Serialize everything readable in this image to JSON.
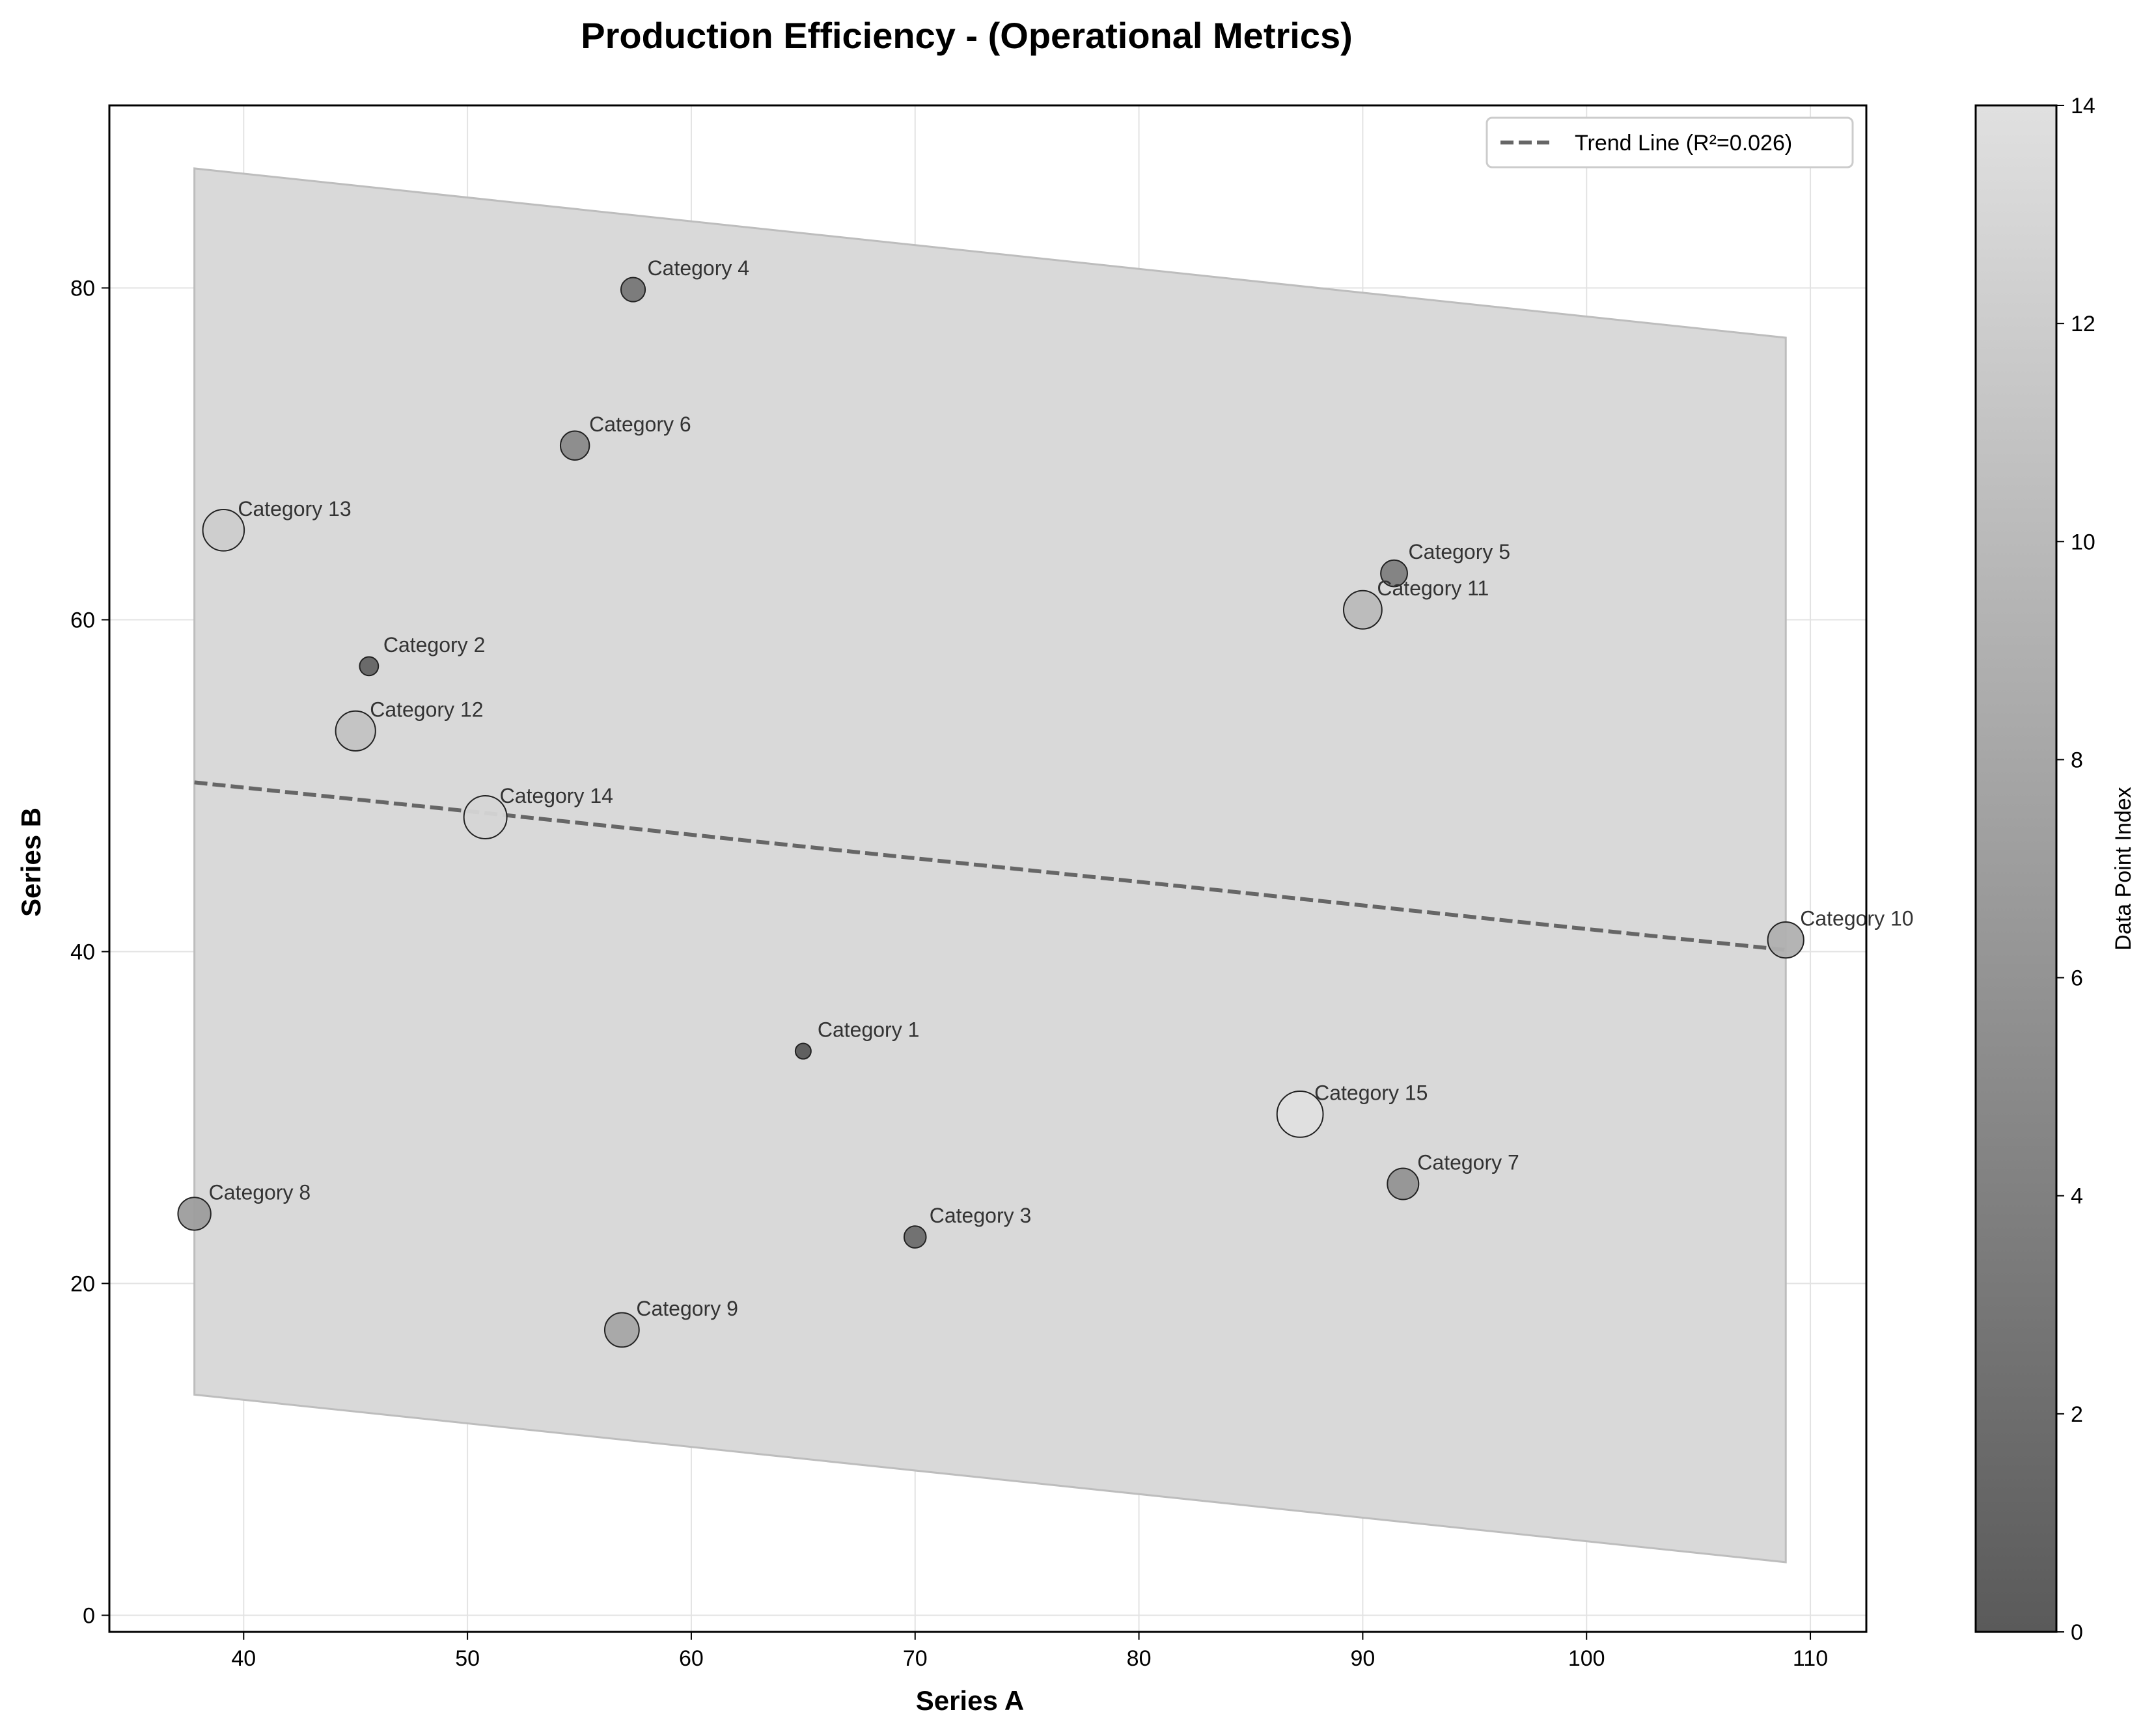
{
  "chart_data": {
    "type": "scatter",
    "title": "Production Efficiency - (Operational Metrics)",
    "xlabel": "Series A",
    "ylabel": "Series B",
    "xlim": [
      34,
      112.5
    ],
    "ylim": [
      -1,
      91
    ],
    "xticks": [
      40,
      50,
      60,
      70,
      80,
      90,
      100,
      110
    ],
    "yticks": [
      0,
      20,
      40,
      60,
      80
    ],
    "grid": true,
    "legend": {
      "position": "top-right",
      "entries": [
        "Trend Line (R²=0.026)"
      ]
    },
    "points": [
      {
        "label": "Category 1",
        "x": 65.0,
        "y": 34.0,
        "size": 1.0
      },
      {
        "label": "Category 2",
        "x": 45.6,
        "y": 57.2,
        "size": 1.2
      },
      {
        "label": "Category 3",
        "x": 70.0,
        "y": 22.8,
        "size": 1.4
      },
      {
        "label": "Category 4",
        "x": 57.4,
        "y": 79.9,
        "size": 1.55
      },
      {
        "label": "Category 5",
        "x": 91.4,
        "y": 62.8,
        "size": 1.7
      },
      {
        "label": "Category 6",
        "x": 54.8,
        "y": 70.5,
        "size": 1.85
      },
      {
        "label": "Category 7",
        "x": 91.8,
        "y": 26.0,
        "size": 2.0
      },
      {
        "label": "Category 8",
        "x": 37.8,
        "y": 24.2,
        "size": 2.1
      },
      {
        "label": "Category 9",
        "x": 56.9,
        "y": 17.2,
        "size": 2.2
      },
      {
        "label": "Category 10",
        "x": 108.9,
        "y": 40.7,
        "size": 2.3
      },
      {
        "label": "Category 11",
        "x": 90.0,
        "y": 60.6,
        "size": 2.45
      },
      {
        "label": "Category 12",
        "x": 45.0,
        "y": 53.3,
        "size": 2.55
      },
      {
        "label": "Category 13",
        "x": 39.1,
        "y": 65.4,
        "size": 2.65
      },
      {
        "label": "Category 14",
        "x": 50.8,
        "y": 48.1,
        "size": 2.75
      },
      {
        "label": "Category 15",
        "x": 87.2,
        "y": 30.2,
        "size": 2.95
      }
    ],
    "trend_line": {
      "x": [
        37.8,
        108.9
      ],
      "y": [
        50.2,
        40.1
      ],
      "r2": 0.026,
      "style": "dashed",
      "color": "#666666"
    },
    "confidence_band": {
      "x": [
        37.8,
        108.9
      ],
      "upper": [
        87.2,
        77.0
      ],
      "lower": [
        13.3,
        3.2
      ],
      "color": "#d9d9d9"
    },
    "colorbar": {
      "label": "Data Point Index",
      "min": 0,
      "max": 14,
      "ticks": [
        0,
        2,
        4,
        6,
        8,
        10,
        12,
        14
      ],
      "color_min": "#5a5a5a",
      "color_max": "#e0e0e0"
    }
  }
}
